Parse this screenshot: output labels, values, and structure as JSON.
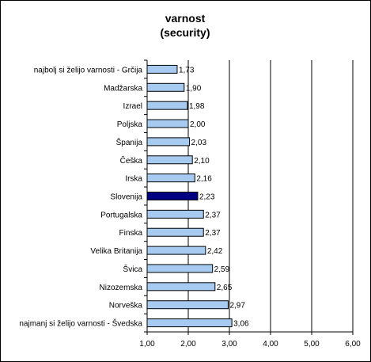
{
  "chart_data": {
    "type": "bar",
    "orientation": "horizontal",
    "title_lines": [
      "varnost",
      "(security)"
    ],
    "categories": [
      "najbolj si želijo varnosti - Grčija",
      "Madžarska",
      "Izrael",
      "Poljska",
      "Španija",
      "Češka",
      "Irska",
      "Slovenija",
      "Portugalska",
      "Finska",
      "Velika Britanija",
      "Švica",
      "Nizozemska",
      "Norveška",
      "najmanj si želijo varnosti - Švedska"
    ],
    "values": [
      1.73,
      1.9,
      1.98,
      2.0,
      2.03,
      2.1,
      2.16,
      2.23,
      2.37,
      2.37,
      2.42,
      2.59,
      2.65,
      2.97,
      3.06
    ],
    "value_labels": [
      "1,73",
      "1,90",
      "1,98",
      "2,00",
      "2,03",
      "2,10",
      "2,16",
      "2,23",
      "2,37",
      "2,37",
      "2,42",
      "2,59",
      "2,65",
      "2,97",
      "3,06"
    ],
    "highlight_category": "Slovenija",
    "xlim": [
      1,
      6
    ],
    "xticks": [
      1,
      2,
      3,
      4,
      5,
      6
    ],
    "xtick_labels": [
      "1,00",
      "2,00",
      "3,00",
      "4,00",
      "5,00",
      "6,00"
    ],
    "grid": "vertical",
    "colors": {
      "bar": "#a6caf0",
      "highlight": "#000080",
      "bar_edge": "#000000",
      "grid": "#000000"
    }
  }
}
